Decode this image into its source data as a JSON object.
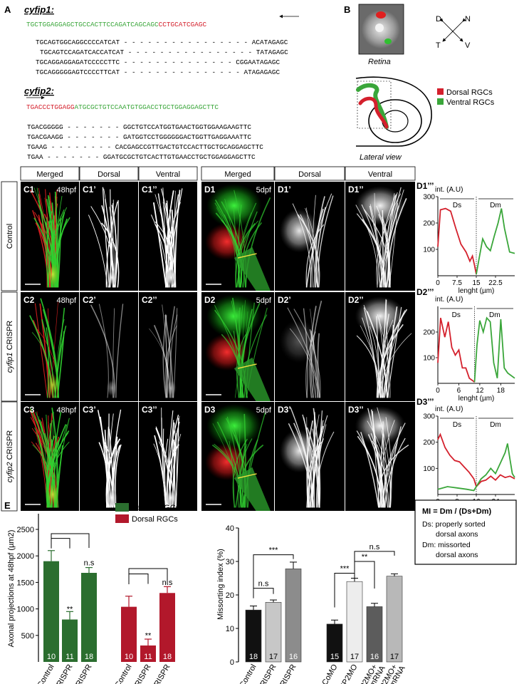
{
  "panelA": {
    "letter": "A",
    "cyfip1_title": "cyfip1:",
    "cyfip1_ref_green": "TGCTGGAGGAGCTGCCACTTCCAGATCAGCAGC",
    "cyfip1_ref_red": "CCTGCATCGAGC",
    "cyfip1_lines": [
      "TGCAGTGGCAGGCCCCATCAT - - - - - - - - - - - - - - - - ACATAGAGC",
      "TGCAGTCCAGATCACCATCAT - - - - - - - - - - - - - - - - TATAGAGC",
      "TGCAGGAGGAGATCCCCCTTC - - - - - - - - - - - - - - CGGAATAGAGC",
      "TGCAGGGGGAGTCCCCTTCAT - - - - - - - - - - - - - - - ATAGAGAGC"
    ],
    "cyfip2_title": "cyfip2:",
    "cyfip2_ref_red": "TGACCCTGGAGG",
    "cyfip2_ref_green": "ATGCGCTGTCCAATGTGGACCTGCTGGAGGAGCTTC",
    "cyfip2_lines": [
      "TGACGGGGG - - - - - - - GGCTGTCCATGGTGAACTGGTGGAAGAAGTTC",
      "TGACGAAGG - - - - - - - GATGGTCCTGGGGGGACTGGTTGAGGAAATTC",
      "TGAAG - - - - - - - - CACGAGCCGTTGACTGTCCACTTGCTGCAGGAGCTTC",
      "TGAA - - - - - - - GGATGCGCTGTCACTTGTGAACCTGCTGGAGGAGCTTC"
    ]
  },
  "panelB": {
    "letter": "B",
    "retina_label": "Retina",
    "compass": {
      "d": "D",
      "n": "N",
      "t": "T",
      "v": "V"
    },
    "legend_dorsal": "Dorsal RGCs",
    "legend_ventral": "Ventral RGCs",
    "lateral_label": "Lateral view",
    "colors": {
      "dorsal": "#d4202c",
      "ventral": "#3aa63a"
    }
  },
  "panelCD": {
    "col_headers": [
      "Merged",
      "Dorsal",
      "Ventral",
      "Merged",
      "Dorsal",
      "Ventral"
    ],
    "row_labels": [
      "Control",
      "cyfip1 CRISPR",
      "cyfip2 CRISPR"
    ],
    "row_labels_gene": [
      "",
      "cyfip1",
      "cyfip2"
    ],
    "row_labels_rest": [
      "Control",
      " CRISPR",
      " CRISPR"
    ],
    "tiles": [
      [
        "C1",
        "C1’",
        "C1’’",
        "D1",
        "D1’",
        "D1’’"
      ],
      [
        "C2",
        "C2’",
        "C2’’",
        "D2",
        "D2’",
        "D2’’"
      ],
      [
        "C3",
        "C3’",
        "C3’’",
        "D3",
        "D3’",
        "D3’’"
      ]
    ],
    "stage_c": "48hpf",
    "stage_d": "5dpf"
  },
  "profiles": {
    "labels": [
      "D1’’’",
      "D2’’’",
      "D3’’’"
    ],
    "ylabel": "int. (A.U)",
    "xlabel": "lenght (µm)",
    "region_ds": "Ds",
    "region_dm": "Dm",
    "charts": [
      {
        "yticks": [
          "300",
          "200",
          "100"
        ],
        "ylim": [
          0,
          300
        ],
        "xticks": [
          "0",
          "7.5",
          "15",
          "22.5"
        ],
        "xlim": [
          0,
          30
        ],
        "xtick_vals": [
          0,
          7.5,
          15,
          22.5
        ],
        "divider": 15,
        "red": [
          [
            0,
            110
          ],
          [
            1,
            250
          ],
          [
            3,
            255
          ],
          [
            5,
            245
          ],
          [
            7,
            180
          ],
          [
            9,
            120
          ],
          [
            11,
            90
          ],
          [
            12.5,
            55
          ],
          [
            13.5,
            75
          ],
          [
            14.3,
            40
          ],
          [
            15,
            5
          ]
        ],
        "green": [
          [
            15,
            5
          ],
          [
            16,
            60
          ],
          [
            17.5,
            140
          ],
          [
            19,
            110
          ],
          [
            20.5,
            95
          ],
          [
            22,
            150
          ],
          [
            23.5,
            200
          ],
          [
            24.8,
            255
          ],
          [
            26,
            180
          ],
          [
            28,
            90
          ],
          [
            30,
            85
          ]
        ]
      },
      {
        "yticks": [
          "200",
          "100"
        ],
        "ylim": [
          0,
          300
        ],
        "xticks": [
          "0",
          "6",
          "12",
          "18"
        ],
        "xlim": [
          0,
          22
        ],
        "xtick_vals": [
          0,
          6,
          12,
          18
        ],
        "divider": 10.5,
        "red": [
          [
            0,
            80
          ],
          [
            0.8,
            255
          ],
          [
            2,
            180
          ],
          [
            3,
            240
          ],
          [
            4,
            140
          ],
          [
            5,
            110
          ],
          [
            6,
            130
          ],
          [
            7,
            60
          ],
          [
            8,
            60
          ],
          [
            9,
            20
          ],
          [
            10.5,
            5
          ]
        ],
        "green": [
          [
            10.5,
            5
          ],
          [
            11.2,
            150
          ],
          [
            12,
            245
          ],
          [
            13,
            200
          ],
          [
            14,
            255
          ],
          [
            15,
            240
          ],
          [
            16,
            80
          ],
          [
            17,
            20
          ],
          [
            18,
            250
          ],
          [
            19,
            60
          ],
          [
            20,
            40
          ],
          [
            22,
            20
          ]
        ]
      },
      {
        "yticks": [
          "300",
          "200",
          "100"
        ],
        "ylim": [
          0,
          300
        ],
        "xticks": [
          "0",
          "8",
          "16",
          "24"
        ],
        "xlim": [
          0,
          32
        ],
        "xtick_vals": [
          0,
          8,
          16,
          24
        ],
        "divider": 16,
        "red": [
          [
            0,
            210
          ],
          [
            1,
            230
          ],
          [
            3,
            180
          ],
          [
            5,
            150
          ],
          [
            7,
            130
          ],
          [
            9,
            125
          ],
          [
            11,
            105
          ],
          [
            13,
            85
          ],
          [
            15,
            60
          ],
          [
            16,
            30
          ],
          [
            18,
            50
          ],
          [
            20,
            55
          ],
          [
            22,
            70
          ],
          [
            24,
            55
          ],
          [
            26,
            75
          ],
          [
            28,
            65
          ],
          [
            30,
            70
          ],
          [
            32,
            60
          ]
        ],
        "green": [
          [
            0,
            20
          ],
          [
            4,
            30
          ],
          [
            8,
            25
          ],
          [
            12,
            20
          ],
          [
            15,
            15
          ],
          [
            16,
            30
          ],
          [
            18,
            60
          ],
          [
            20,
            75
          ],
          [
            22,
            100
          ],
          [
            24,
            80
          ],
          [
            26,
            120
          ],
          [
            28,
            160
          ],
          [
            29,
            195
          ],
          [
            30,
            135
          ],
          [
            31,
            80
          ],
          [
            32,
            65
          ]
        ]
      }
    ]
  },
  "chartE": {
    "letter": "E",
    "ylabel": "Axonal projections at 48hpf (µm2)",
    "yticks": [
      "2500",
      "2000",
      "1500",
      "1000",
      "500"
    ],
    "ylim": [
      0,
      2500
    ],
    "legend": [
      "Ventral RGCs",
      "Dorsal RGCs"
    ],
    "categories": [
      "Control",
      "cyfip1 CRISPR",
      "cyfip2 CRISPR",
      "Control",
      "cyfip1 CRISPR",
      "cyfip2 CRISPR"
    ],
    "values": [
      1900,
      800,
      1680,
      1040,
      310,
      1300
    ],
    "errors": [
      200,
      150,
      100,
      200,
      120,
      120
    ],
    "n": [
      "10",
      "11",
      "18",
      "10",
      "11",
      "18"
    ],
    "colors": [
      "#2b6e2f",
      "#2b6e2f",
      "#2b6e2f",
      "#b2182b",
      "#b2182b",
      "#b2182b"
    ],
    "sig_stars": "**",
    "sig_ns": "n.s"
  },
  "chartF": {
    "letter": "F",
    "ylabel": "Missorting index (%)",
    "yticks": [
      "40",
      "30",
      "20",
      "10",
      "0"
    ],
    "ylim": [
      0,
      40
    ],
    "categories": [
      "Control",
      "cyfip1 CRISPR",
      "cyfip2 CRISPR",
      "CoMO",
      "CYFIP2MO",
      "CYFIP2MO+ cyfip2 mRNA",
      "CYFIP2MO+ cyfip1 mRNA"
    ],
    "cat_line1": [
      "Control",
      "cyfip1 CRISPR",
      "cyfip2 CRISPR",
      "CoMO",
      "CYFIP2MO",
      "CYFIP2MO+",
      "CYFIP2MO+"
    ],
    "cat_line2": [
      "",
      "",
      "",
      "",
      "",
      "cyfip2 mRNA",
      "cyfip1 mRNA"
    ],
    "values": [
      15.5,
      17.8,
      27.8,
      11.3,
      24.0,
      16.5,
      25.6
    ],
    "errors": [
      1.2,
      0.7,
      2.0,
      1.2,
      1.0,
      1.0,
      0.7
    ],
    "n": [
      "18",
      "17",
      "16",
      "15",
      "17",
      "16",
      "17"
    ],
    "colors": [
      "#111111",
      "#c7c7c7",
      "#8c8c8c",
      "#111111",
      "#ededed",
      "#5c5c5c",
      "#b8b8b8"
    ],
    "sig": [
      "n.s",
      "***",
      "***",
      "**",
      "n.s"
    ]
  },
  "formula": {
    "title": "MI = Dm / (Ds+Dm)",
    "line1": "Ds: properly sorted",
    "line2": "dorsal axons",
    "line3": "Dm: missorted",
    "line4": "dorsal axons"
  }
}
